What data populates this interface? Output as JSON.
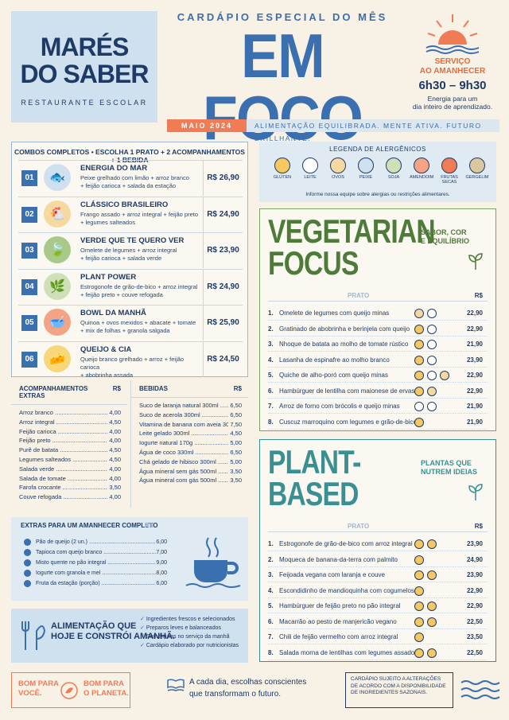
{
  "logo": {
    "line1": "MARÉS",
    "line2": "DO SABER",
    "subtitle": "RESTAURANTE ESCOLAR"
  },
  "header": {
    "kicker": "CARDÁPIO ESPECIAL DO MÊS",
    "title": "EM FOCO",
    "month": "MAIO 2024",
    "tagline": "ALIMENTAÇÃO EQUILIBRADA. MENTE ATIVA. FUTURO BRILLHANTE."
  },
  "service": {
    "label1": "SERVIÇO",
    "label2": "AO AMANHECER",
    "hours": "6h30 – 9h30",
    "note1": "Energia para um",
    "note2": "dia inteiro de aprendizado."
  },
  "combos": {
    "title": "COMBOS COMPLETOS • ESCOLHA 1 PRATO + 2 ACOMPANHAMENTOS + 1 BEBIDA",
    "items": [
      {
        "num": "01",
        "name": "ENERGIA DO MAR",
        "d1": "Peixe grelhado com limão + arroz branco",
        "d2": "+ feijão carioca + salada da estação",
        "price": "R$ 26,90",
        "icon": "fish-icon",
        "color": "#cfe0ee"
      },
      {
        "num": "02",
        "name": "CLÁSSICO BRASILEIRO",
        "d1": "Frango assado + arroz integral + feijão preto",
        "d2": "+ legumes salteados",
        "price": "R$ 24,90",
        "icon": "chicken-icon",
        "color": "#f6d9a0"
      },
      {
        "num": "03",
        "name": "VERDE QUE TE QUERO VER",
        "d1": "Omelete de legumes + arroz integral",
        "d2": "+ feijão carioca + salada verde",
        "price": "R$ 23,90",
        "icon": "leaf-icon",
        "color": "#a8c98a"
      },
      {
        "num": "04",
        "name": "PLANT POWER",
        "d1": "Estrogonofe de grão-de-bico + arroz integral",
        "d2": "+ feijão preto + couve refogada",
        "price": "R$ 24,90",
        "icon": "plant-icon",
        "color": "#cfe0b8"
      },
      {
        "num": "05",
        "name": "BOWL DA MANHÃ",
        "d1": "Quinoa + ovos mexidos + abacate + tomate",
        "d2": "+ mix de folhas + granola salgada",
        "price": "R$ 25,90",
        "icon": "bowl-icon",
        "color": "#f4a384"
      },
      {
        "num": "06",
        "name": "QUEIJO & CIA",
        "d1": "Queijo branco grelhado + arroz + feijão carioca",
        "d2": "+ abobrinha assada",
        "price": "R$ 24,50",
        "icon": "cheese-icon",
        "color": "#f7d77a"
      }
    ]
  },
  "sides": {
    "title": "ACOMPANHAMENTOS EXTRAS",
    "currency": "R$",
    "items": [
      {
        "n": "Arroz branco",
        "p": "4,00"
      },
      {
        "n": "Arroz integral",
        "p": "4,50"
      },
      {
        "n": "Feijão carioca",
        "p": "4,00"
      },
      {
        "n": "Feijão preto",
        "p": "4,00"
      },
      {
        "n": "Purê de batata",
        "p": "4,50"
      },
      {
        "n": "Legumes salteados",
        "p": "4,50"
      },
      {
        "n": "Salada verde",
        "p": "4,00"
      },
      {
        "n": "Salada de tomate",
        "p": "4,00"
      },
      {
        "n": "Farofa crocante",
        "p": "3,50"
      },
      {
        "n": "Couve refogada",
        "p": "4,00"
      }
    ]
  },
  "drinks": {
    "title": "BEBIDAS",
    "currency": "R$",
    "items": [
      {
        "n": "Suco de laranja natural 300ml",
        "p": "6,50"
      },
      {
        "n": "Suco de acerola 300ml",
        "p": "6,50"
      },
      {
        "n": "Vitamina de banana com aveia 300ml",
        "p": "7,50"
      },
      {
        "n": "Leite gelado 300ml",
        "p": "4,50"
      },
      {
        "n": "Iogurte natural 170g",
        "p": "5,00"
      },
      {
        "n": "Água de coco 330ml",
        "p": "6,50"
      },
      {
        "n": "Chá gelado de hibisco 300ml",
        "p": "5,00"
      },
      {
        "n": "Água mineral sem gás 500ml",
        "p": "3,50"
      },
      {
        "n": "Água mineral com gás 500ml",
        "p": "3,50"
      }
    ]
  },
  "extras": {
    "title": "EXTRAS PARA UM AMANHECER COMPLETO",
    "currency": "R$",
    "items": [
      {
        "n": "Pão de queijo (2 un.)",
        "p": "6,00"
      },
      {
        "n": "Tapioca com queijo branco",
        "p": "7,00"
      },
      {
        "n": "Misto quente no pão integral",
        "p": "9,00"
      },
      {
        "n": "Iogurte com granola e mel",
        "p": "8,00"
      },
      {
        "n": "Fruta da estação (porção)",
        "p": "6,00"
      }
    ]
  },
  "slogan": {
    "l1": "ALIMENTAÇÃO QUE",
    "l2": "HOJE E CONSTRÓI AMANHÃ.",
    "bullets": [
      "Ingredientes frescos e selecionados",
      "Preparos leves e balanceados",
      "Sem frituras no serviço da manhã",
      "Cardápio elaborado por nutricionistas"
    ]
  },
  "footer": {
    "a1": "BOM PARA",
    "a2": "VOCÊ.",
    "b1": "BOM PARA",
    "b2": "O PLANETA.",
    "mid1": "A cada dia, escolhas conscientes",
    "mid2": "que transformam o futuro.",
    "note": "CARDÁPIO SUJEITO A ALTERAÇÕES DE ACORDO COM A DISPONIBILIDADE DE INGREDIENTES SAZONAIS."
  },
  "allergens": {
    "title": "LEGENDA DE ALERGÊNICOS",
    "note": "Informe nossa equipe sobre alergias ou restrições alimentares.",
    "items": [
      {
        "n": "GLÚTEN",
        "icon": "wheat-icon",
        "c": "#f6c85f"
      },
      {
        "n": "LEITE",
        "icon": "milk-icon",
        "c": "#ffffff"
      },
      {
        "n": "OVOS",
        "icon": "egg-icon",
        "c": "#f6d9a0"
      },
      {
        "n": "PEIXE",
        "icon": "fish-icon",
        "c": "#cfe0ee"
      },
      {
        "n": "SOJA",
        "icon": "soy-icon",
        "c": "#cfe0b8"
      },
      {
        "n": "AMENDOIM",
        "icon": "peanut-icon",
        "c": "#f4a384"
      },
      {
        "n": "FRUTAS SECAS",
        "icon": "nut-icon",
        "c": "#f07c56"
      },
      {
        "n": "GERGELIM",
        "icon": "sesame-icon",
        "c": "#d9c7a0"
      }
    ]
  },
  "veg": {
    "t1": "VEGETARIAN",
    "t2": "FOCUS",
    "side1": "SABOR, COR",
    "side2": "E EQUILÍBRIO",
    "col": "PRATO",
    "cur": "R$",
    "color": "#4e7a3a",
    "items": [
      {
        "n": "1.",
        "d": "Omelete de legumes com queijo minas",
        "p": "22,90",
        "a": [
          "#f6d9a0",
          "#ffffff"
        ]
      },
      {
        "n": "2.",
        "d": "Gratinado de abobrinha e berinjela com queijo",
        "p": "22,90",
        "a": [
          "#f6c85f",
          "#ffffff"
        ]
      },
      {
        "n": "3.",
        "d": "Nhoque de batata ao molho de tomate rústico",
        "p": "21,90",
        "a": [
          "#f6c85f",
          "#ffffff"
        ]
      },
      {
        "n": "4.",
        "d": "Lasanha de espinafre ao molho branco",
        "p": "23,90",
        "a": [
          "#f6c85f",
          "#ffffff"
        ]
      },
      {
        "n": "5.",
        "d": "Quiche de alho-poró com queijo minas",
        "p": "22,90",
        "a": [
          "#f6c85f",
          "#ffffff",
          "#f6d9a0"
        ]
      },
      {
        "n": "6.",
        "d": "Hambúrguer de lentilha com maionese de ervas",
        "p": "22,90",
        "a": [
          "#f6c85f",
          "#f6d9a0"
        ]
      },
      {
        "n": "7.",
        "d": "Arroz de forno com brócolis e queijo minas",
        "p": "21,90",
        "a": [
          "#ffffff",
          "#ffffff"
        ]
      },
      {
        "n": "8.",
        "d": "Cuscuz marroquino com legumes e grão-de-bico",
        "p": "21,90",
        "a": [
          "#f6c85f"
        ]
      }
    ]
  },
  "plant": {
    "t1": "PLANT-",
    "t2": "BASED",
    "side1": "PLANTAS QUE",
    "side2": "NUTREM IDEIAS",
    "col": "PRATO",
    "cur": "R$",
    "color": "#3a8f92",
    "items": [
      {
        "n": "1.",
        "d": "Estrogonofe de grão-de-bico com arroz integral",
        "p": "23,90",
        "a": [
          "#f6c85f",
          "#f6c85f"
        ]
      },
      {
        "n": "2.",
        "d": "Moqueca de banana-da-terra com palmito",
        "p": "24,90",
        "a": [
          "#f6c85f"
        ]
      },
      {
        "n": "3.",
        "d": "Feijoada vegana com laranja e couve",
        "p": "23,90",
        "a": [
          "#f6c85f",
          "#f6c85f"
        ]
      },
      {
        "n": "4.",
        "d": "Escondidinho de mandioquinha com cogumelos",
        "p": "22,90",
        "a": [
          "#f6c85f"
        ]
      },
      {
        "n": "5.",
        "d": "Hambúrguer de feijão preto no pão integral",
        "p": "22,90",
        "a": [
          "#f6c85f",
          "#f6c85f"
        ]
      },
      {
        "n": "6.",
        "d": "Macarrão ao pesto de manjericão vegano",
        "p": "22,50",
        "a": [
          "#f6c85f",
          "#f6c85f"
        ]
      },
      {
        "n": "7.",
        "d": "Chili de feijão vermelho com arroz integral",
        "p": "23,50",
        "a": [
          "#f6c85f"
        ]
      },
      {
        "n": "8.",
        "d": "Salada morna de lentilhas com legumes assados",
        "p": "22,50",
        "a": [
          "#f6c85f",
          "#f6c85f"
        ]
      }
    ]
  }
}
